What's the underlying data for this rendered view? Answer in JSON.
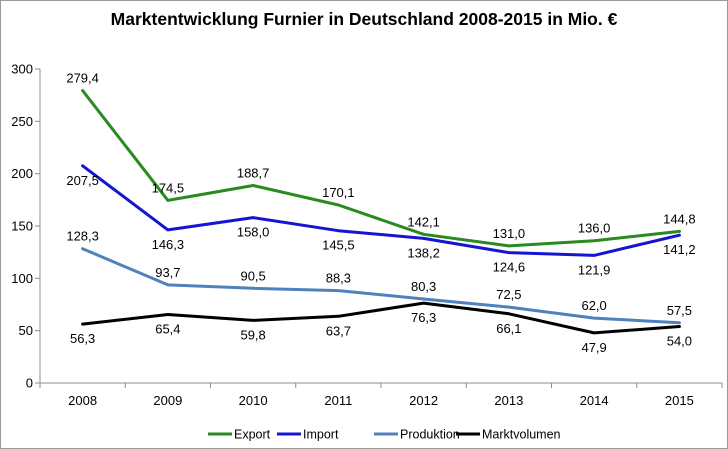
{
  "chart_data": {
    "type": "line",
    "title": "Marktentwicklung Furnier in Deutschland 2008-2015 in Mio. €",
    "categories": [
      "2008",
      "2009",
      "2010",
      "2011",
      "2012",
      "2013",
      "2014",
      "2015"
    ],
    "ylim": [
      0,
      300
    ],
    "yticks": [
      0,
      50,
      100,
      150,
      200,
      250,
      300
    ],
    "grid": false,
    "legend_position": "bottom",
    "series": [
      {
        "name": "Export",
        "color": "#2a8a1f",
        "values": [
          279.4,
          174.5,
          188.7,
          170.1,
          142.1,
          131.0,
          136.0,
          144.8
        ],
        "labels": [
          "279,4",
          "174,5",
          "188,7",
          "170,1",
          "142,1",
          "131,0",
          "136,0",
          "144,8"
        ]
      },
      {
        "name": "Import",
        "color": "#1414d2",
        "values": [
          207.5,
          146.3,
          158.0,
          145.5,
          138.2,
          124.6,
          121.9,
          141.2
        ],
        "labels": [
          "207,5",
          "146,3",
          "158,0",
          "145,5",
          "138,2",
          "124,6",
          "121,9",
          "141,2"
        ]
      },
      {
        "name": "Produktion",
        "color": "#4f81bd",
        "values": [
          128.3,
          93.7,
          90.5,
          88.3,
          80.3,
          72.5,
          62.0,
          57.5
        ],
        "labels": [
          "128,3",
          "93,7",
          "90,5",
          "88,3",
          "80,3",
          "72,5",
          "62,0",
          "57,5"
        ]
      },
      {
        "name": "Marktvolumen",
        "color": "#000000",
        "values": [
          56.3,
          65.4,
          59.8,
          63.7,
          76.3,
          66.1,
          47.9,
          54.0
        ],
        "labels": [
          "56,3",
          "65,4",
          "59,8",
          "63,7",
          "76,3",
          "66,1",
          "47,9",
          "54,0"
        ]
      }
    ]
  }
}
